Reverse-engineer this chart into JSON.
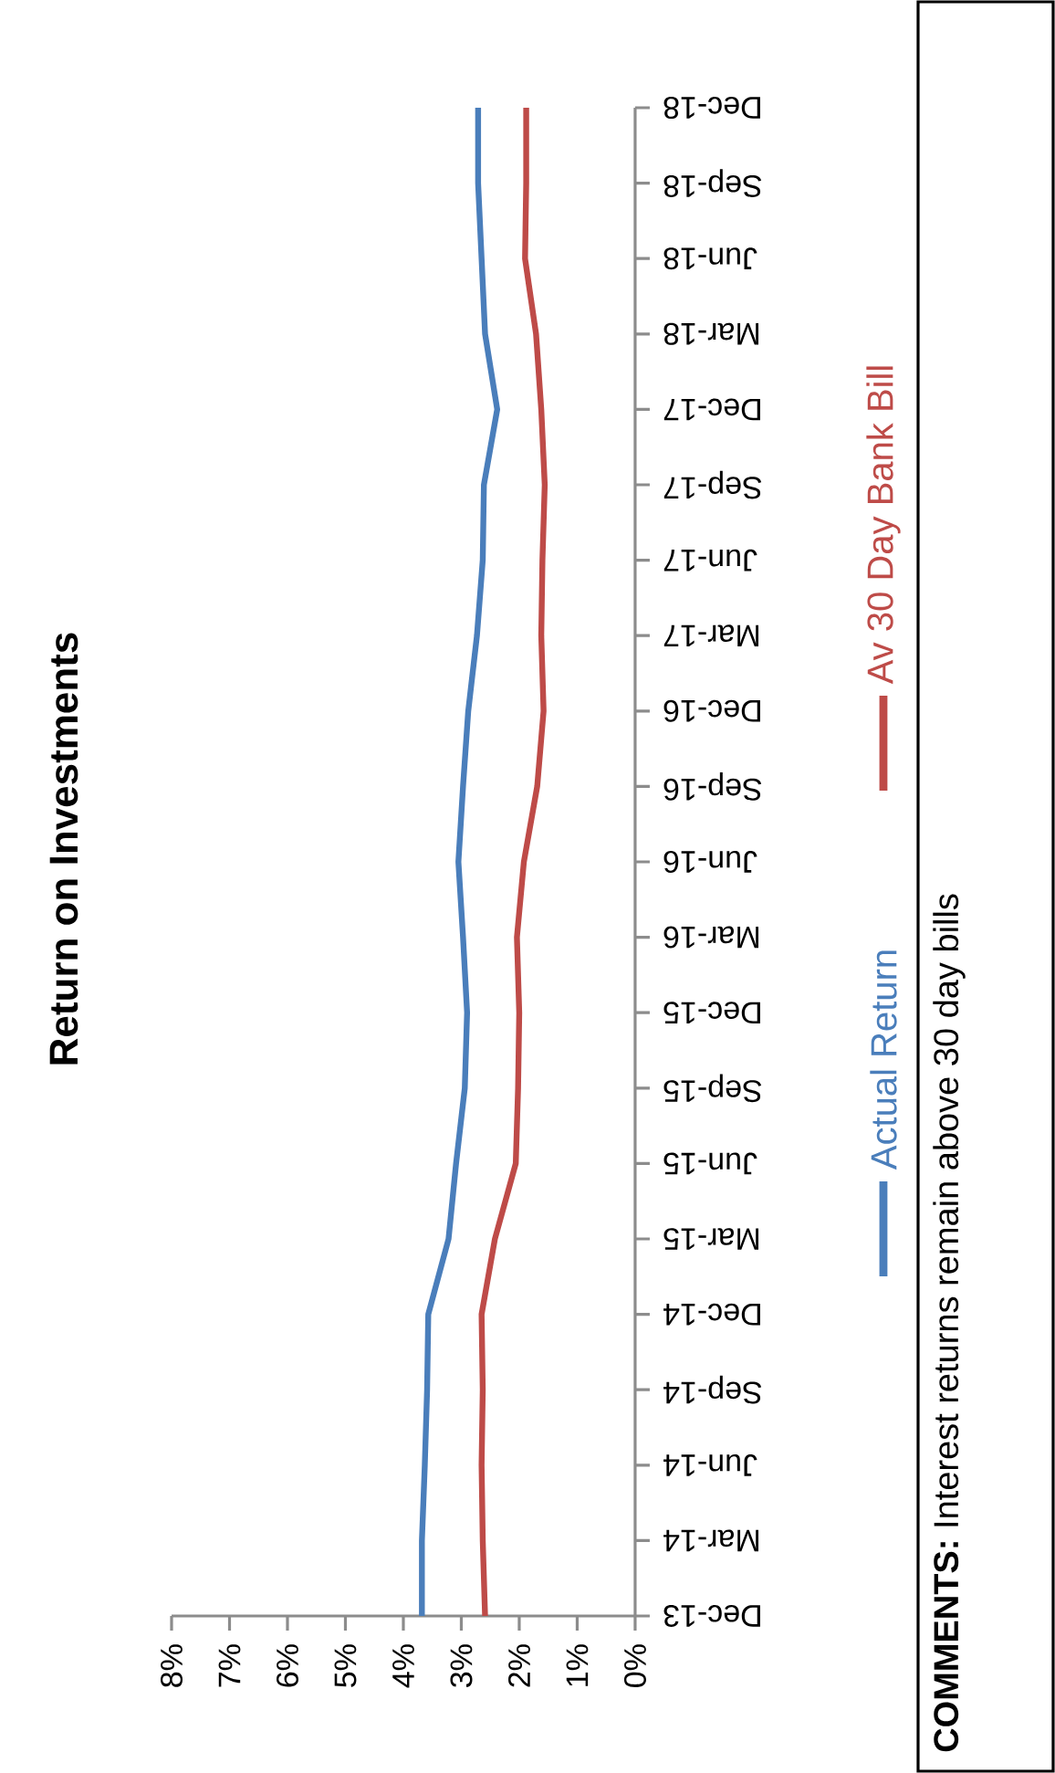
{
  "chart_data": {
    "type": "line",
    "title": "Return on Investments",
    "orientation": "horizontal",
    "categories": [
      "Dec-18",
      "Sep-18",
      "Jun-18",
      "Mar-18",
      "Dec-17",
      "Sep-17",
      "Jun-17",
      "Mar-17",
      "Dec-16",
      "Sep-16",
      "Jun-16",
      "Mar-16",
      "Dec-15",
      "Sep-15",
      "Jun-15",
      "Mar-15",
      "Dec-14",
      "Sep-14",
      "Jun-14",
      "Mar-14",
      "Dec-13"
    ],
    "series": [
      {
        "name": "Actual Return",
        "color": "#4a7ebb",
        "values": [
          2.71,
          2.71,
          2.65,
          2.59,
          2.38,
          2.61,
          2.63,
          2.73,
          2.88,
          2.97,
          3.05,
          2.97,
          2.9,
          2.94,
          3.09,
          3.22,
          3.57,
          3.59,
          3.63,
          3.68,
          3.68
        ]
      },
      {
        "name": "Av 30 Day Bank Bill",
        "color": "#be4b48",
        "values": [
          1.88,
          1.88,
          1.9,
          1.71,
          1.62,
          1.56,
          1.6,
          1.62,
          1.58,
          1.69,
          1.92,
          2.04,
          2.0,
          2.02,
          2.06,
          2.42,
          2.65,
          2.63,
          2.65,
          2.63,
          2.59
        ]
      }
    ],
    "xlim": [
      8,
      0
    ],
    "xticks": [
      {
        "value": 8,
        "label": "8%"
      },
      {
        "value": 7,
        "label": "7%"
      },
      {
        "value": 6,
        "label": "6%"
      },
      {
        "value": 5,
        "label": "5%"
      },
      {
        "value": 4,
        "label": "4%"
      },
      {
        "value": 3,
        "label": "3%"
      },
      {
        "value": 2,
        "label": "2%"
      },
      {
        "value": 1,
        "label": "1%"
      },
      {
        "value": 0,
        "label": "0%"
      }
    ],
    "legend": "right",
    "marker": "none",
    "line_style": "solid",
    "grid": false,
    "annotations": [
      "**COMMENTS:**  Interest returns remain above 30 day bills"
    ]
  }
}
